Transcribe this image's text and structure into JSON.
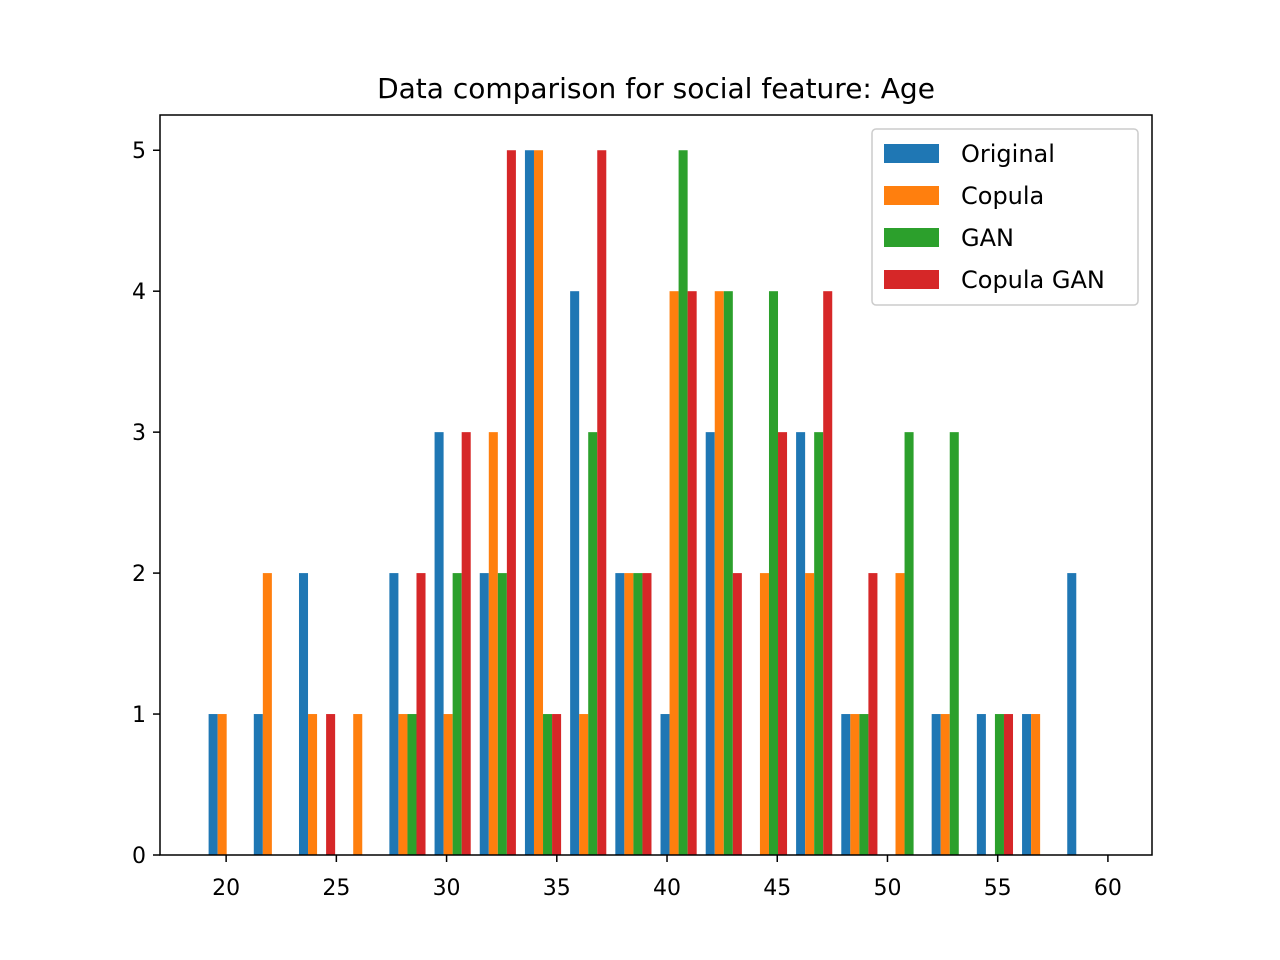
{
  "chart_data": {
    "type": "bar",
    "title": "Data comparison for social feature: Age",
    "xlabel": "",
    "ylabel": "",
    "xlim": [
      17,
      62
    ],
    "ylim": [
      0,
      5.25
    ],
    "x_ticks": [
      20,
      25,
      30,
      35,
      40,
      45,
      50,
      55,
      60
    ],
    "y_ticks": [
      0,
      1,
      2,
      3,
      4,
      5
    ],
    "bin_edges": [
      19.0,
      21.05,
      23.1,
      25.15,
      27.2,
      29.25,
      31.3,
      33.35,
      35.4,
      37.45,
      39.5,
      41.55,
      43.6,
      45.65,
      47.7,
      49.75,
      51.8,
      53.85,
      55.9,
      57.95,
      60.0
    ],
    "legend_position": "upper right",
    "grid": false,
    "series": [
      {
        "name": "Original",
        "color": "#1f77b4",
        "values": [
          1,
          1,
          2,
          0,
          2,
          3,
          2,
          5,
          4,
          2,
          1,
          3,
          0,
          3,
          1,
          0,
          1,
          1,
          1,
          2
        ]
      },
      {
        "name": "Copula",
        "color": "#ff7f0e",
        "values": [
          1,
          2,
          1,
          1,
          1,
          1,
          3,
          5,
          1,
          2,
          4,
          4,
          2,
          2,
          1,
          2,
          1,
          0,
          1,
          0
        ]
      },
      {
        "name": "GAN",
        "color": "#2ca02c",
        "values": [
          0,
          0,
          0,
          0,
          1,
          2,
          2,
          1,
          3,
          2,
          5,
          4,
          4,
          3,
          1,
          3,
          3,
          1,
          0,
          0
        ]
      },
      {
        "name": "Copula GAN",
        "color": "#d62728",
        "values": [
          0,
          0,
          1,
          0,
          2,
          3,
          5,
          1,
          5,
          2,
          4,
          2,
          3,
          4,
          2,
          0,
          0,
          1,
          0,
          0
        ]
      }
    ]
  }
}
